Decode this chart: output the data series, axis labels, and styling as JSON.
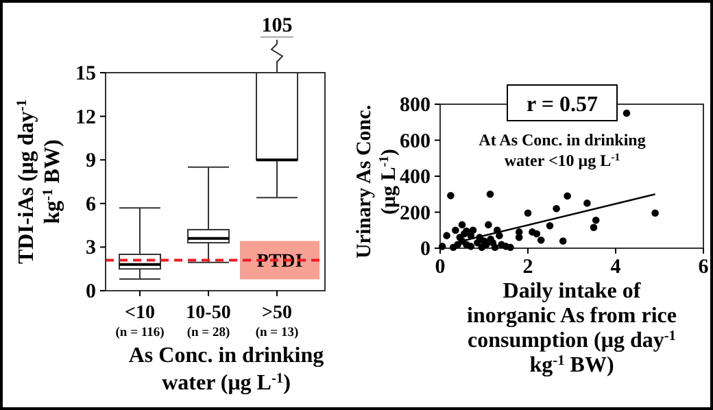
{
  "chart_data": [
    {
      "type": "box",
      "categories": [
        "<10\n(n = 116)",
        "10-50\n(n = 28)",
        ">50\n(n = 13)"
      ],
      "boxes": [
        {
          "low": 0.8,
          "q1": 1.5,
          "median": 1.8,
          "q3": 2.5,
          "high": 5.7
        },
        {
          "low": 1.95,
          "q1": 3.3,
          "median": 3.6,
          "q3": 4.2,
          "high": 8.5
        },
        {
          "low": 6.4,
          "q1": 9,
          "median": 9,
          "q3": 15,
          "high": 15
        }
      ],
      "ylim": [
        0,
        15
      ],
      "yticks": [
        0,
        3,
        6,
        9,
        12,
        15
      ],
      "ylabel": "TDI-iAs (μg day$^{-1}$\nkg$^{-1}$ BW)",
      "xlabel": "As Conc. in drinking\nwater (μg L$^{-1}$)",
      "ref_lines": [
        {
          "axis": "y",
          "value": 2.1,
          "label": "PTDI",
          "color": "#ee1c25",
          "line_style": "dashed"
        }
      ],
      "annotations": [
        "105"
      ],
      "grid": false
    },
    {
      "type": "scatter",
      "marker": "circle",
      "grid": false,
      "series": [
        {
          "type": "scatter",
          "color": "#000000",
          "x": [
            0.24,
            1.14,
            0.15,
            0.35,
            0.5,
            0.45,
            0.5,
            0.55,
            0.6,
            0.7,
            0.75,
            0.85,
            0.6,
            0.7,
            0.9,
            1.0,
            1.05,
            1.1,
            1.15,
            1.2,
            1.3,
            1.35,
            1.4,
            1.5,
            1.6,
            0.05,
            0.3,
            0.4,
            0.95,
            1.25,
            1.8,
            1.8,
            2.0,
            2.1,
            2.2,
            2.3,
            2.5,
            2.65,
            2.8,
            2.9,
            3.35,
            3.5,
            3.55,
            4.25,
            4.9
          ],
          "values": [
            292,
            300,
            70,
            100,
            130,
            60,
            40,
            80,
            95,
            70,
            100,
            30,
            20,
            10,
            60,
            40,
            20,
            130,
            50,
            30,
            100,
            70,
            20,
            10,
            5,
            10,
            5,
            20,
            5,
            5,
            60,
            90,
            195,
            90,
            80,
            45,
            125,
            220,
            40,
            290,
            250,
            115,
            155,
            750,
            195
          ]
        },
        {
          "type": "line",
          "color": "#000000",
          "marker": "none",
          "x": [
            0.5,
            4.9
          ],
          "values": [
            40,
            300
          ]
        }
      ],
      "xlim": [
        0,
        6
      ],
      "xticks": [
        0,
        2,
        4,
        6
      ],
      "ylim": [
        0,
        800
      ],
      "yticks": [
        0,
        200,
        400,
        600,
        800
      ],
      "xlabel": "Daily intake of\ninorganic As from rice\nconsumption (μg day$^{-1}$\nkg$^{-1}$ BW)",
      "ylabel": "Urinary As Conc.\n(μg L$^{-1}$)",
      "annotations": [
        "r = 0.57",
        "At As Conc. in drinking\nwater <10 μg L$^{-1}$"
      ]
    }
  ]
}
